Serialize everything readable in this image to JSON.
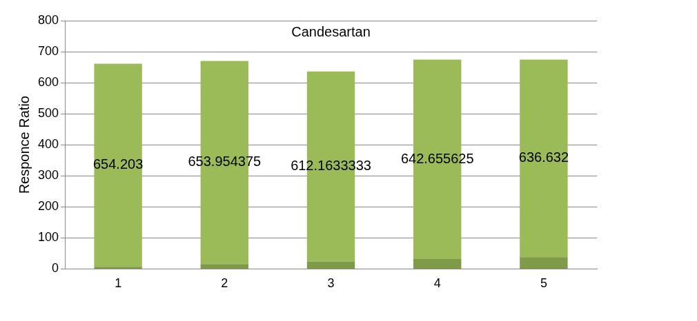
{
  "chart_data": {
    "type": "bar",
    "title": "Candesartan",
    "ylabel": "Responce Ratio",
    "categories": [
      "1",
      "2",
      "3",
      "4",
      "5"
    ],
    "series": [
      {
        "color": "#7f9a48",
        "values": [
          7,
          16,
          24,
          32,
          38
        ]
      },
      {
        "color": "#9bbb59",
        "values": [
          654.203,
          653.954375,
          612.1633333,
          642.655625,
          636.632
        ],
        "value_labels": [
          "654.203",
          "653.954375",
          "612.1633333",
          "642.655625",
          "636.632"
        ]
      }
    ],
    "stacked": true,
    "ylim": [
      0,
      800
    ],
    "yticks": [
      0,
      100,
      200,
      300,
      400,
      500,
      600,
      700,
      800
    ],
    "grid": "y",
    "legend": false
  }
}
